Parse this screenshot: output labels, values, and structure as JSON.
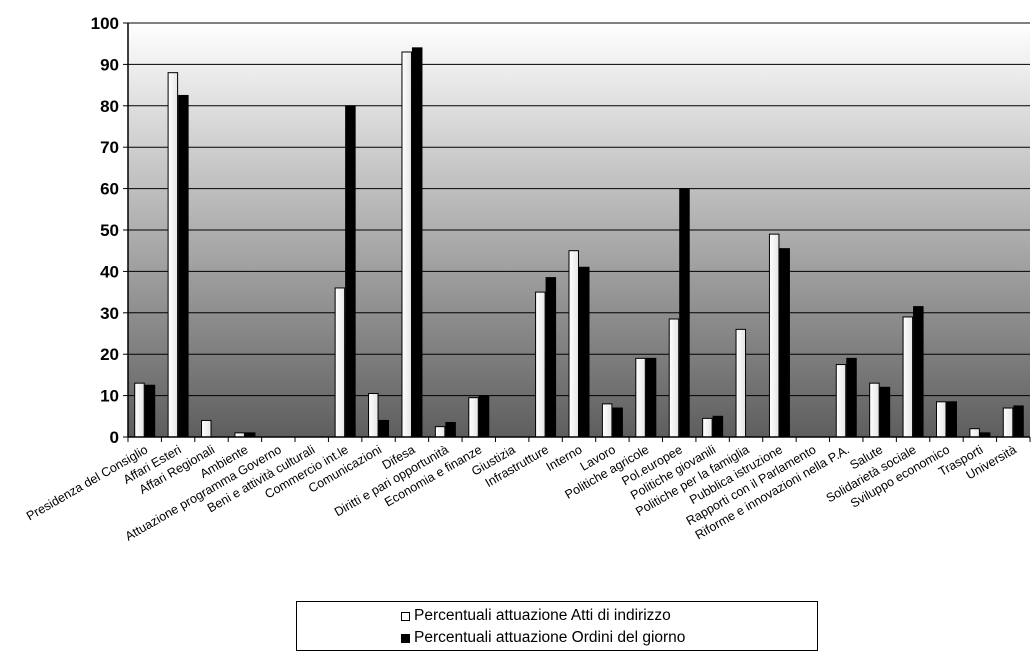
{
  "chart_data": {
    "type": "bar",
    "categories": [
      "Presidenza del Consiglio",
      "Affari Esteri",
      "Affari Regionali",
      "Ambiente",
      "Attuazione programma Governo",
      "Beni e attività culturali",
      "Commercio int.le",
      "Comunicazioni",
      "Difesa",
      "Diritti e pari opportunità",
      "Economia e finanze",
      "Giustizia",
      "Infrastrutture",
      "Interno",
      "Lavoro",
      "Politiche agricole",
      "Pol.europee",
      "Politiche giovanili",
      "Politiche per la famiglia",
      "Pubblica istruzione",
      "Rapporti con il Parlamento",
      "Riforme e innovazioni nella P.A.",
      "Salute",
      "Solidarietà sociale",
      "Sviluppo economico",
      "Trasporti",
      "Università"
    ],
    "series": [
      {
        "name": "Percentuali attuazione Atti di indirizzo",
        "color": "#ffffff",
        "values": [
          13,
          88,
          4,
          1,
          0,
          0,
          36,
          10.5,
          93,
          2.5,
          9.5,
          0,
          35,
          45,
          8,
          19,
          28.5,
          4.5,
          26,
          49,
          0,
          17.5,
          13,
          29,
          8.5,
          2,
          7
        ]
      },
      {
        "name": "Percentuali attuazione Ordini del giorno",
        "color": "#000000",
        "values": [
          12.5,
          82.5,
          0,
          1,
          0,
          0,
          80,
          4,
          94,
          3.5,
          10,
          0,
          38.5,
          41,
          7,
          19,
          60,
          5,
          0,
          45.5,
          0,
          19,
          12,
          31.5,
          8.5,
          1,
          7.5
        ]
      }
    ],
    "title": "",
    "xlabel": "",
    "ylabel": "",
    "ylim": [
      0,
      100
    ],
    "yticks": [
      0,
      10,
      20,
      30,
      40,
      50,
      60,
      70,
      80,
      90,
      100
    ],
    "grid": true,
    "background": "vertical gradient from white (top) to dark gray (bottom)",
    "legend_position": "bottom"
  }
}
